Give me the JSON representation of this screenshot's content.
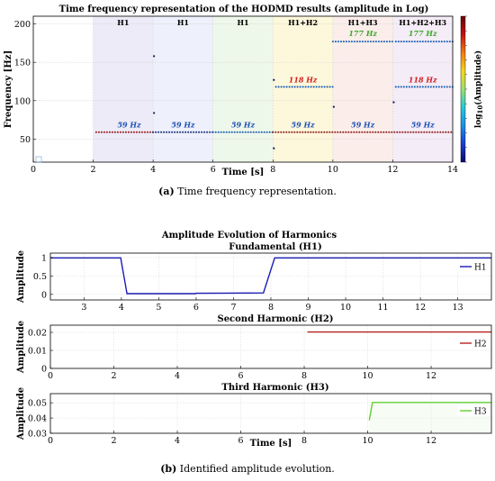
{
  "figure": {
    "caption_a_label": "(a)",
    "caption_a_text": " Time frequency representation.",
    "caption_b_label": "(b)",
    "caption_b_text": " Identified amplitude evolution.",
    "group_title_b": "Amplitude Evolution of Harmonics"
  },
  "chart_data": [
    {
      "type": "scatter",
      "title": "Time frequency representation of the HODMD results (amplitude in Log)",
      "xlabel": "Time [s]",
      "ylabel": "Frequency [Hz]",
      "xlim": [
        0,
        14
      ],
      "ylim": [
        20,
        210
      ],
      "xticks": [
        "0",
        "2",
        "4",
        "6",
        "8",
        "10",
        "12",
        "14"
      ],
      "yticks": [
        "50",
        "100",
        "150",
        "200"
      ],
      "colorbar_label": "log10(Amplitude)",
      "segments": [
        {
          "label": "H1",
          "x0": 2,
          "x1": 4,
          "color": "#ecebf7"
        },
        {
          "label": "H1",
          "x0": 4,
          "x1": 6,
          "color": "#eef0fb"
        },
        {
          "label": "H1",
          "x0": 6,
          "x1": 8,
          "color": "#eef8ea"
        },
        {
          "label": "H1+H2",
          "x0": 8,
          "x1": 10,
          "color": "#fdf8dc"
        },
        {
          "label": "H1+H3",
          "x0": 10,
          "x1": 12,
          "color": "#fbeeea"
        },
        {
          "label": "H1+H2+H3",
          "x0": 12,
          "x1": 14,
          "color": "#f4ecf6"
        }
      ],
      "series": [
        {
          "name": "59 Hz",
          "y": 59,
          "runs": [
            {
              "x0": 2.1,
              "x1": 4.0,
              "color": "#9b1c1c"
            },
            {
              "x0": 4.0,
              "x1": 6.0,
              "color": "#1b2f7a"
            },
            {
              "x0": 6.0,
              "x1": 8.0,
              "color": "#1d5fb5"
            },
            {
              "x0": 8.0,
              "x1": 14.0,
              "color": "#8f1d1d"
            }
          ]
        },
        {
          "name": "118 Hz",
          "y": 118,
          "runs": [
            {
              "x0": 8.1,
              "x1": 10.0,
              "color": "#1d5fb5"
            },
            {
              "x0": 12.1,
              "x1": 14.0,
              "color": "#1d5fb5"
            }
          ]
        },
        {
          "name": "177 Hz",
          "y": 177,
          "runs": [
            {
              "x0": 10.0,
              "x1": 12.0,
              "color": "#1d5fb5"
            },
            {
              "x0": 12.1,
              "x1": 14.0,
              "color": "#1d5fb5"
            }
          ]
        }
      ],
      "outliers": [
        {
          "x": 4.0,
          "y": 158
        },
        {
          "x": 4.0,
          "y": 84
        },
        {
          "x": 8.0,
          "y": 127
        },
        {
          "x": 8.0,
          "y": 38
        },
        {
          "x": 10.0,
          "y": 92
        },
        {
          "x": 12.0,
          "y": 98
        }
      ],
      "annotations": [
        {
          "text": "59 Hz",
          "x": 3.2,
          "y": 65,
          "color": "#1d4fb5"
        },
        {
          "text": "59 Hz",
          "x": 5.0,
          "y": 65,
          "color": "#1d4fb5"
        },
        {
          "text": "59 Hz",
          "x": 7.0,
          "y": 65,
          "color": "#1d4fb5"
        },
        {
          "text": "59 Hz",
          "x": 9.0,
          "y": 65,
          "color": "#1d4fb5"
        },
        {
          "text": "59 Hz",
          "x": 11.0,
          "y": 65,
          "color": "#1d4fb5"
        },
        {
          "text": "59 Hz",
          "x": 13.0,
          "y": 65,
          "color": "#1d4fb5"
        },
        {
          "text": "118 Hz",
          "x": 9.0,
          "y": 124,
          "color": "#d01f1f"
        },
        {
          "text": "118 Hz",
          "x": 13.0,
          "y": 124,
          "color": "#d01f1f"
        },
        {
          "text": "177 Hz",
          "x": 11.0,
          "y": 184,
          "color": "#3ea82a"
        },
        {
          "text": "177 Hz",
          "x": 13.0,
          "y": 184,
          "color": "#3ea82a"
        }
      ],
      "colorbar_colors": [
        "#0a0a6e",
        "#1a3fd0",
        "#1d8fe6",
        "#25c9d8",
        "#9de06a",
        "#f5d51e",
        "#f07a10",
        "#c3120f",
        "#6b0000"
      ]
    },
    {
      "type": "line",
      "title": "Fundamental (H1)",
      "ylabel": "Amplitude",
      "xlim": [
        2.1,
        13.9
      ],
      "ylim": [
        -0.15,
        1.12
      ],
      "xticks": [
        "3",
        "4",
        "5",
        "6",
        "7",
        "8",
        "9",
        "10",
        "11",
        "12",
        "13"
      ],
      "yticks": [
        "0",
        "0.5",
        "1"
      ],
      "series": [
        {
          "name": "H1",
          "color": "#1a1ab4",
          "x": [
            2.1,
            3.98,
            4.15,
            5.98,
            6.0,
            7.8,
            8.1,
            13.9
          ],
          "y": [
            0.99,
            0.99,
            0.02,
            0.02,
            0.03,
            0.04,
            0.99,
            0.99
          ]
        }
      ]
    },
    {
      "type": "line",
      "title": "Second Harmonic (H2)",
      "ylabel": "Amplitude",
      "xlim": [
        0,
        13.9
      ],
      "ylim": [
        0,
        0.024
      ],
      "xticks": [
        "0",
        "2",
        "4",
        "6",
        "8",
        "10",
        "12"
      ],
      "yticks": [
        "0",
        "0.01",
        "0.02"
      ],
      "series": [
        {
          "name": "H2",
          "color": "#b5231f",
          "x": [
            8.1,
            13.9
          ],
          "y": [
            0.0202,
            0.0202
          ]
        }
      ]
    },
    {
      "type": "line",
      "title": "Third Harmonic (H3)",
      "ylabel": "Amplitude",
      "xlabel": "Time [s]",
      "xlim": [
        0,
        13.9
      ],
      "ylim": [
        0.03,
        0.056
      ],
      "xticks": [
        "0",
        "2",
        "4",
        "6",
        "8",
        "10",
        "12"
      ],
      "yticks": [
        "0.03",
        "0.04",
        "0.05"
      ],
      "series": [
        {
          "name": "H3",
          "color": "#5fcf2e",
          "x": [
            10.05,
            10.15,
            13.9
          ],
          "y": [
            0.0385,
            0.0502,
            0.0502
          ]
        }
      ]
    }
  ]
}
